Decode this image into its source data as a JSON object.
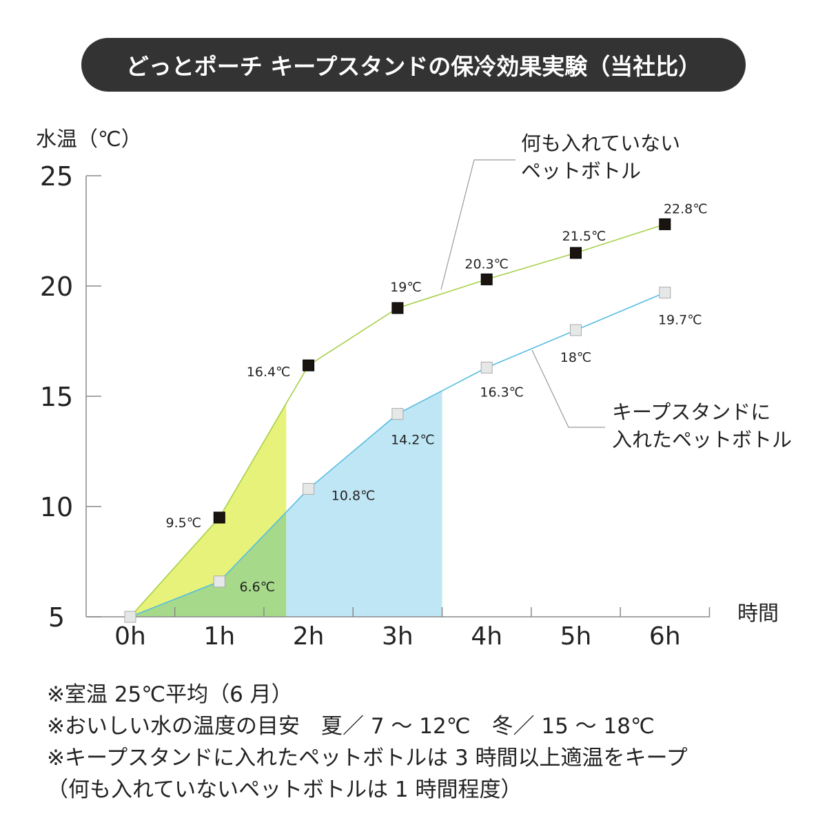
{
  "title": "どっとポーチ キープスタンドの保冷効果実験（当社比）",
  "chart_data": {
    "type": "line",
    "ylabel": "水温（℃）",
    "xlabel": "時間",
    "categories": [
      "0h",
      "1h",
      "2h",
      "3h",
      "4h",
      "5h",
      "6h"
    ],
    "x": [
      0,
      1,
      2,
      3,
      4,
      5,
      6
    ],
    "ylim": [
      5,
      25
    ],
    "yticks": [
      5,
      10,
      15,
      20,
      25
    ],
    "grid": false,
    "series": [
      {
        "name": "何も入れていないペットボトル",
        "name_lines": [
          "何も入れていない",
          "ペットボトル"
        ],
        "values": [
          5,
          9.5,
          16.4,
          19,
          20.3,
          21.5,
          22.8
        ],
        "labels": [
          "",
          "9.5℃",
          "16.4℃",
          "19℃",
          "20.3℃",
          "21.5℃",
          "22.8℃"
        ],
        "line_color": "#a6cf48",
        "marker_color": "#1a1410"
      },
      {
        "name": "キープスタンドに入れたペットボトル",
        "name_lines": [
          "キープスタンドに",
          "入れたペットボトル"
        ],
        "values": [
          5,
          6.6,
          10.8,
          14.2,
          16.3,
          18,
          19.7
        ],
        "labels": [
          "",
          "6.6℃",
          "10.8℃",
          "14.2℃",
          "16.3℃",
          "18℃",
          "19.7℃"
        ],
        "line_color": "#55bde0",
        "marker_color": "#e6e8e8"
      }
    ],
    "shaded_regions": [
      {
        "series": 0,
        "x_range": [
          0,
          1.75
        ],
        "color": "#e7f27a"
      },
      {
        "series": 1,
        "x_range": [
          0,
          1.75
        ],
        "color": "#a6d98a"
      },
      {
        "series": 1,
        "x_range": [
          1.75,
          3.5
        ],
        "color": "#bfe6f4"
      }
    ]
  },
  "notes": [
    "※室温 25℃平均（6 月）",
    "※おいしい水の温度の目安　夏／ 7 ～ 12℃　冬／ 15 ～ 18℃",
    "※キープスタンドに入れたペットボトルは 3 時間以上適温をキープ",
    "（何も入れていないペットボトルは 1 時間程度）"
  ]
}
